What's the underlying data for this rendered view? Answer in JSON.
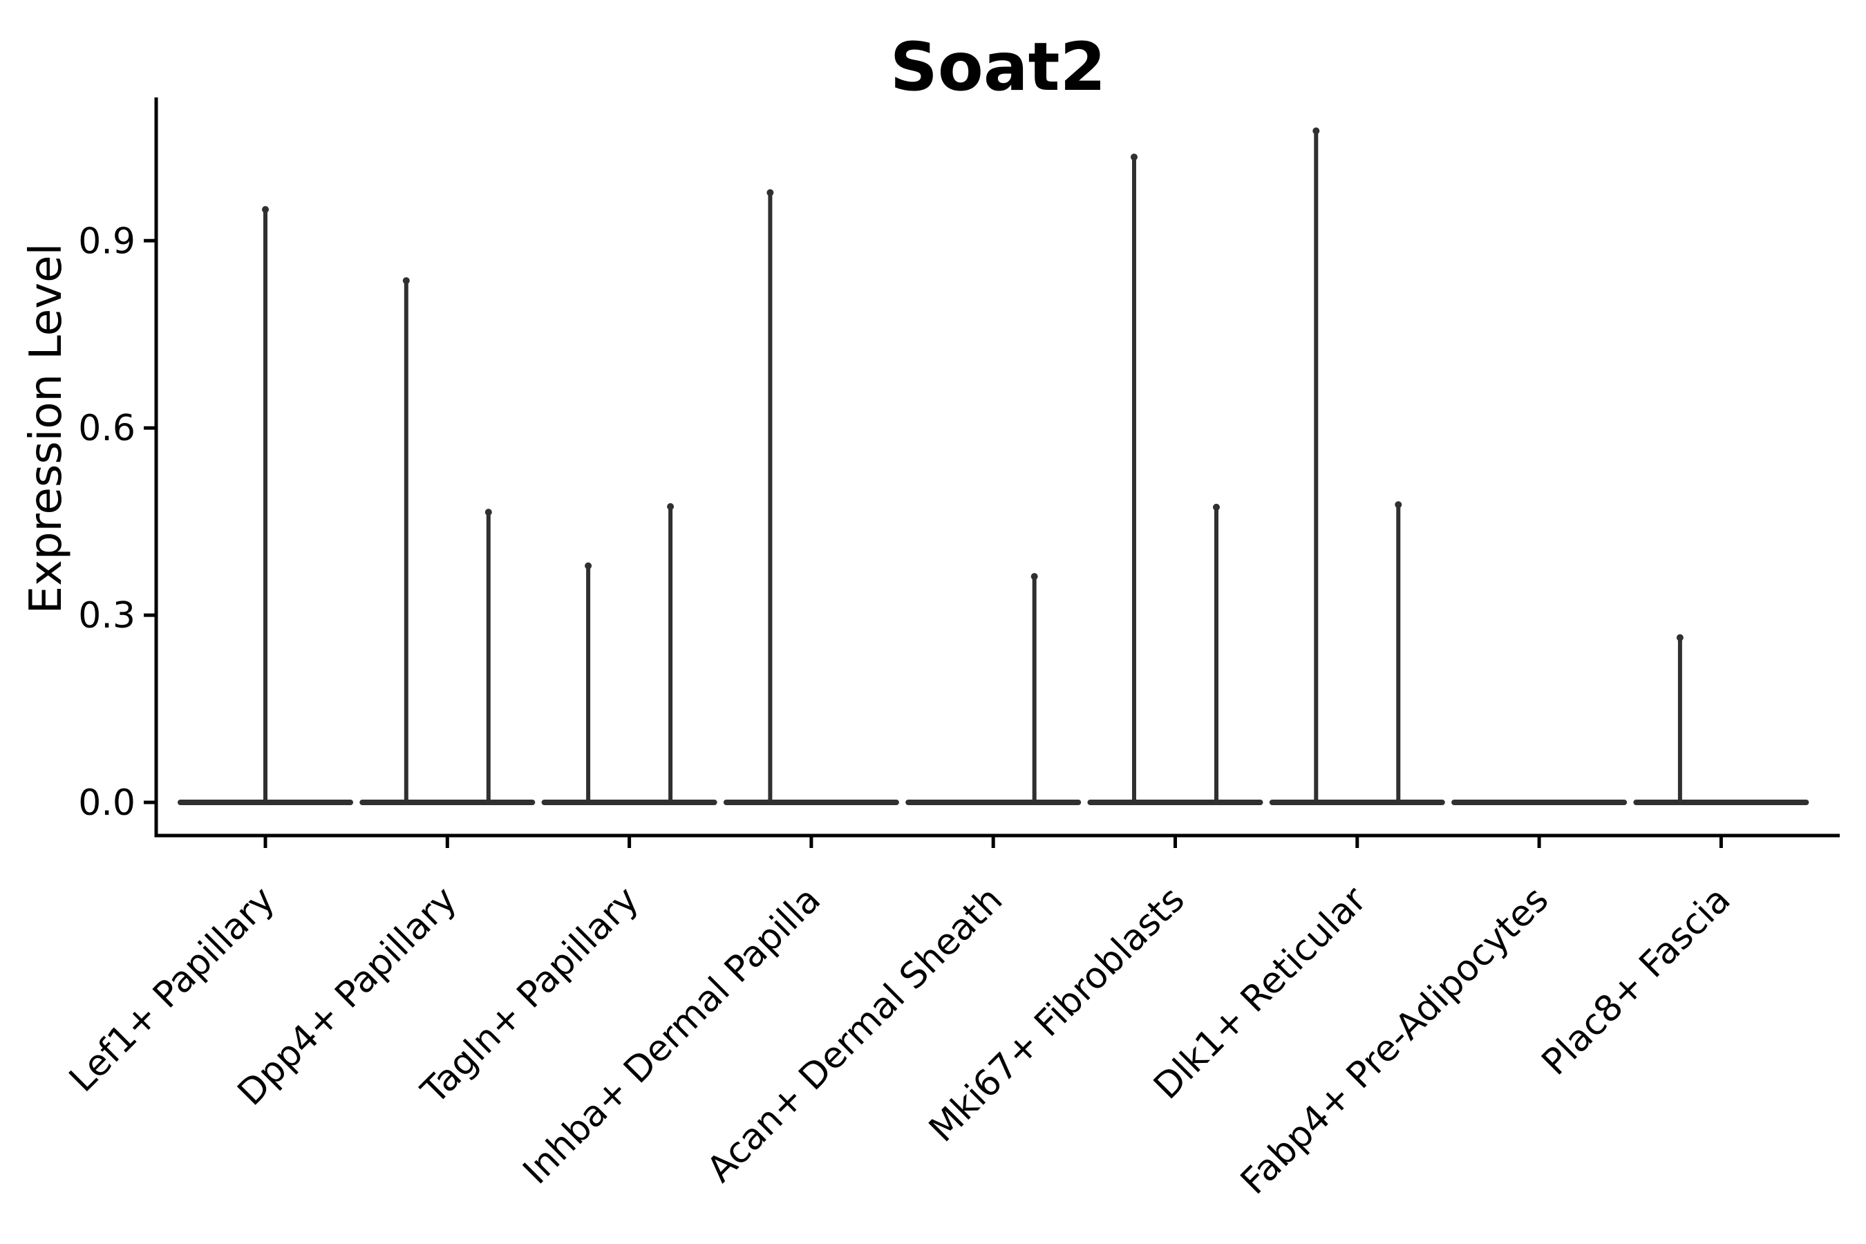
{
  "chart_data": {
    "type": "violin",
    "title": "Soat2",
    "xlabel": "",
    "ylabel": "Expression Level",
    "yticks": [
      "0.0",
      "0.3",
      "0.6",
      "0.9"
    ],
    "ytick_values": [
      0.0,
      0.3,
      0.6,
      0.9
    ],
    "ylim": [
      0.0,
      1.13
    ],
    "grid": false,
    "legend": "none",
    "background_color": "#ffffff",
    "axis_color": "#000000",
    "violin_color": "#303030",
    "categories": [
      "Lef1+ Papillary",
      "Dpp4+ Papillary",
      "Tagln+ Papillary",
      "Inhba+ Dermal Papilla",
      "Acan+ Dermal Sheath",
      "Mki67+ Fibroblasts",
      "Dlk1+ Reticular",
      "Fabp4+ Pre-Adipocytes",
      "Plac8+ Fascia"
    ],
    "violins": [
      {
        "category": "Lef1+ Papillary",
        "baseline_value": 0.0,
        "spikes": [
          {
            "slot": "center",
            "max_value": 0.95
          }
        ]
      },
      {
        "category": "Dpp4+ Papillary",
        "baseline_value": 0.0,
        "spikes": [
          {
            "slot": "left",
            "max_value": 0.836
          },
          {
            "slot": "right",
            "max_value": 0.465
          }
        ]
      },
      {
        "category": "Tagln+ Papillary",
        "baseline_value": 0.0,
        "spikes": [
          {
            "slot": "left",
            "max_value": 0.379
          },
          {
            "slot": "right",
            "max_value": 0.474
          }
        ]
      },
      {
        "category": "Inhba+ Dermal Papilla",
        "baseline_value": 0.0,
        "spikes": [
          {
            "slot": "left",
            "max_value": 0.977
          }
        ]
      },
      {
        "category": "Acan+ Dermal Sheath",
        "baseline_value": 0.0,
        "spikes": [
          {
            "slot": "right",
            "max_value": 0.362
          }
        ]
      },
      {
        "category": "Mki67+ Fibroblasts",
        "baseline_value": 0.0,
        "spikes": [
          {
            "slot": "left",
            "max_value": 1.034
          },
          {
            "slot": "right",
            "max_value": 0.473
          }
        ]
      },
      {
        "category": "Dlk1+ Reticular",
        "baseline_value": 0.0,
        "spikes": [
          {
            "slot": "left",
            "max_value": 1.076
          },
          {
            "slot": "right",
            "max_value": 0.477
          }
        ]
      },
      {
        "category": "Fabp4+ Pre-Adipocytes",
        "baseline_value": 0.0,
        "spikes": []
      },
      {
        "category": "Plac8+ Fascia",
        "baseline_value": 0.0,
        "spikes": [
          {
            "slot": "left",
            "max_value": 0.264
          }
        ]
      }
    ]
  }
}
